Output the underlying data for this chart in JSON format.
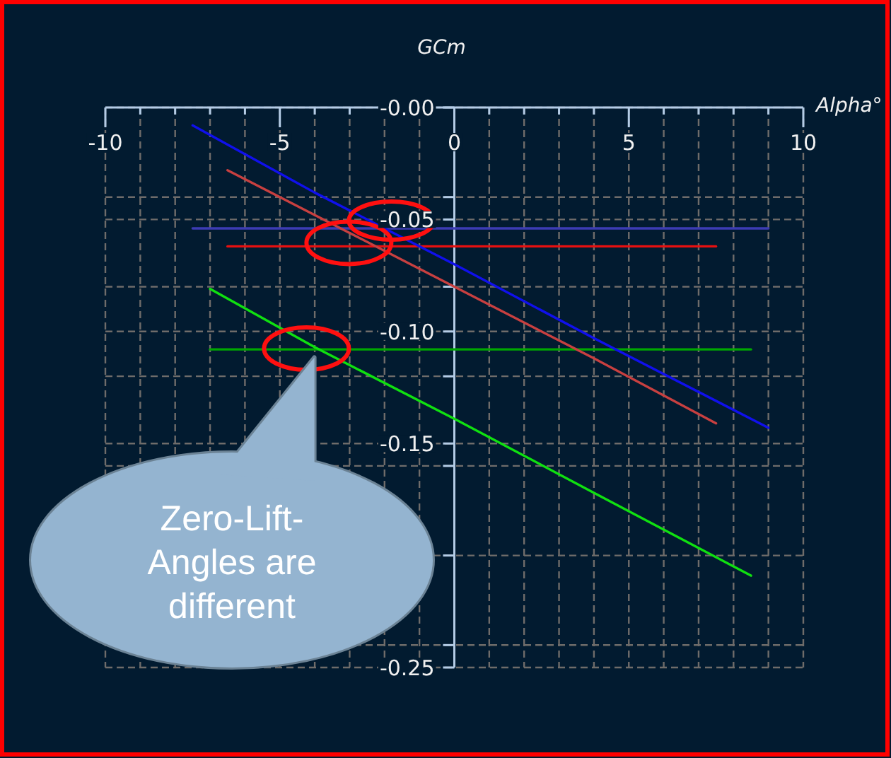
{
  "chart_data": {
    "type": "line",
    "xlabel": "Alpha°",
    "ylabel": "GCm",
    "xlim": [
      -10,
      10
    ],
    "ylim": [
      -0.25,
      0
    ],
    "xticks": [
      -10,
      {
        "value": -9,
        "label": null
      },
      {
        "value": -8,
        "label": null
      },
      {
        "value": -7,
        "label": null
      },
      {
        "value": -6,
        "label": null
      },
      -5,
      {
        "value": -4,
        "label": null
      },
      {
        "value": -3,
        "label": null
      },
      {
        "value": -2,
        "label": null
      },
      {
        "value": -1,
        "label": null
      },
      0,
      {
        "value": 1,
        "label": null
      },
      {
        "value": 2,
        "label": null
      },
      {
        "value": 3,
        "label": null
      },
      {
        "value": 4,
        "label": null
      },
      5,
      {
        "value": 6,
        "label": null
      },
      {
        "value": 7,
        "label": null
      },
      {
        "value": 8,
        "label": null
      },
      {
        "value": 9,
        "label": null
      },
      10
    ],
    "yticks": [
      {
        "value": 0,
        "label": "-0.00"
      },
      {
        "value": -0.04,
        "label": null
      },
      -0.05,
      {
        "value": -0.08,
        "label": null
      },
      {
        "value": -0.1,
        "label": "-0.10"
      },
      {
        "value": -0.12,
        "label": null
      },
      -0.15,
      {
        "value": -0.16,
        "label": null
      },
      {
        "value": -0.2,
        "label": null
      },
      {
        "value": -0.24,
        "label": null
      },
      -0.25
    ],
    "grid": true,
    "series": [
      {
        "color": "#3c3cb4",
        "x": [
          -7.5,
          9
        ],
        "values": [
          -0.054,
          -0.054
        ]
      },
      {
        "color": "#e81010",
        "x": [
          -6.5,
          7.5
        ],
        "values": [
          -0.062,
          -0.062
        ]
      },
      {
        "color": "#00a800",
        "x": [
          -7,
          8.5
        ],
        "values": [
          -0.108,
          -0.108
        ]
      },
      {
        "color": "#1010ec",
        "x": [
          -7.5,
          -4,
          0,
          4,
          9
        ],
        "values": [
          -0.008,
          -0.038,
          -0.07,
          -0.103,
          -0.143
        ]
      },
      {
        "color": "#c84040",
        "x": [
          -6.5,
          -3,
          0,
          4,
          7.5
        ],
        "values": [
          -0.028,
          -0.056,
          -0.08,
          -0.112,
          -0.141
        ]
      },
      {
        "color": "#10e010",
        "x": [
          -7,
          -4,
          0,
          4,
          8.5
        ],
        "values": [
          -0.081,
          -0.107,
          -0.139,
          -0.172,
          -0.209
        ]
      }
    ],
    "annotations": [
      "Zero-Lift-Angles are different"
    ]
  }
}
